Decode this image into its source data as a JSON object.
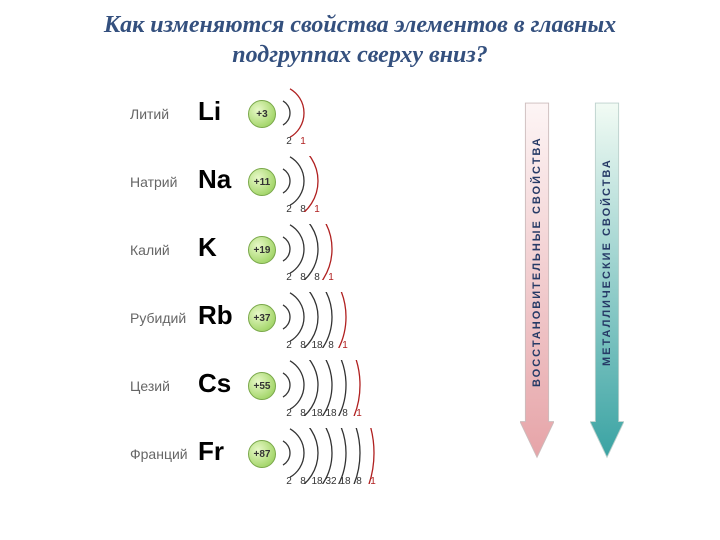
{
  "title_line1": "Как изменяются свойства элементов в главных",
  "title_line2": "подгруппах сверху вниз?",
  "text_color_title": "#34507e",
  "font_title_size": 24,
  "elements": [
    {
      "name": "Литий",
      "symbol": "Li",
      "charge": "+3",
      "shells": [
        2,
        1
      ]
    },
    {
      "name": "Натрий",
      "symbol": "Na",
      "charge": "+11",
      "shells": [
        2,
        8,
        1
      ]
    },
    {
      "name": "Калий",
      "symbol": "K",
      "charge": "+19",
      "shells": [
        2,
        8,
        8,
        1
      ]
    },
    {
      "name": "Рубидий",
      "symbol": "Rb",
      "charge": "+37",
      "shells": [
        2,
        8,
        18,
        8,
        1
      ]
    },
    {
      "name": "Цезий",
      "symbol": "Cs",
      "charge": "+55",
      "shells": [
        2,
        8,
        18,
        18,
        8,
        1
      ]
    },
    {
      "name": "Франций",
      "symbol": "Fr",
      "charge": "+87",
      "shells": [
        2,
        8,
        18,
        32,
        18,
        8,
        1
      ]
    }
  ],
  "shell_arc_spacing": 14,
  "shell_arc_color": "#333333",
  "shell_last_color": "#b02020",
  "nucleus_fill_inner": "#e8f9c8",
  "nucleus_fill_outer": "#8bbf5a",
  "arrows": {
    "left": {
      "label": "ВОССТАНОВИТЕЛЬНЫЕ  СВОЙСТВА",
      "gradient_top": "#fdf5f5",
      "gradient_bottom": "#e6a4a8",
      "border": "#d0c4c4"
    },
    "right": {
      "label": "МЕТАЛЛИЧЕСКИЕ  СВОЙСТВА",
      "gradient_top": "#f2fbf4",
      "gradient_bottom": "#3aa3a3",
      "border": "#c2d0cc"
    }
  }
}
